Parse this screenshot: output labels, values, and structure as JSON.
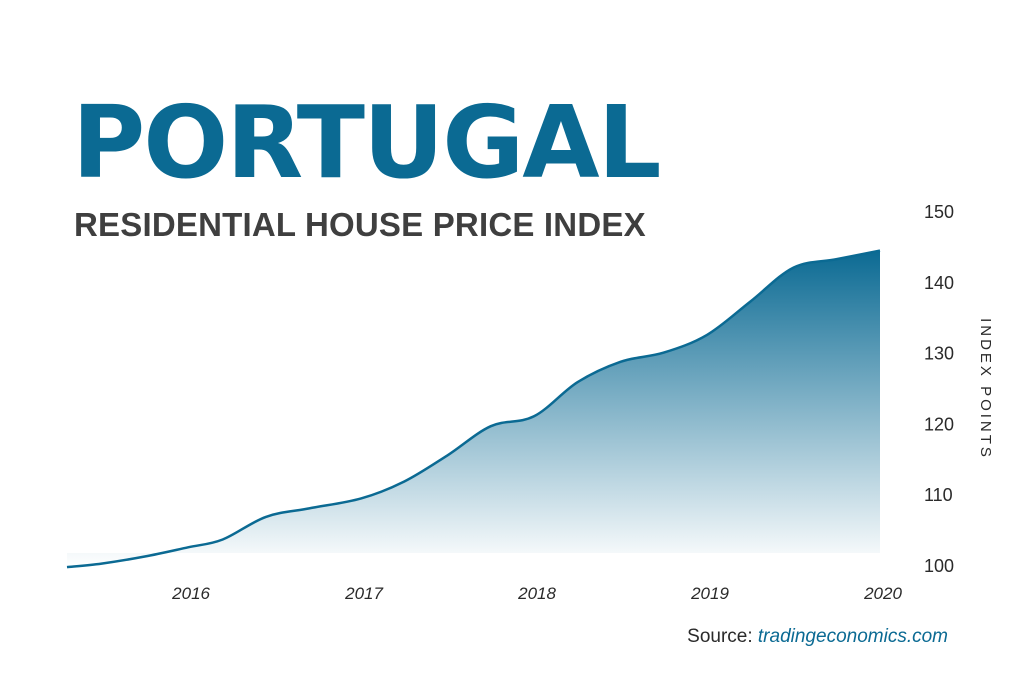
{
  "chart_data": {
    "type": "area",
    "title": "PORTUGAL",
    "subtitle": "RESIDENTIAL HOUSE PRICE INDEX",
    "ylabel": "INDEX POINTS",
    "xlabel": "",
    "ylim": [
      100,
      150
    ],
    "yticks": [
      100,
      110,
      120,
      130,
      140,
      150
    ],
    "xlim": [
      2015.3,
      2020
    ],
    "xticks": [
      2016,
      2017,
      2018,
      2019,
      2020
    ],
    "grid": false,
    "series": [
      {
        "x": [
          2015.3,
          2015.5,
          2015.75,
          2016.0,
          2016.2,
          2016.45,
          2016.7,
          2017.0,
          2017.25,
          2017.5,
          2017.75,
          2018.0,
          2018.25,
          2018.5,
          2018.75,
          2019.0,
          2019.25,
          2019.5,
          2019.75,
          2020.0
        ],
        "values": [
          99.7,
          100.2,
          101.2,
          102.5,
          103.6,
          106.8,
          108.0,
          109.4,
          111.8,
          115.5,
          119.6,
          121.0,
          125.8,
          128.7,
          130.0,
          132.5,
          137.2,
          142.0,
          143.2,
          144.4
        ]
      }
    ],
    "colors": {
      "line": "#0b6a93",
      "fill_top": "#0b6a93",
      "fill_bottom": "#ffffff"
    }
  },
  "source": {
    "label": "Source:",
    "site": "tradingeconomics.com"
  }
}
